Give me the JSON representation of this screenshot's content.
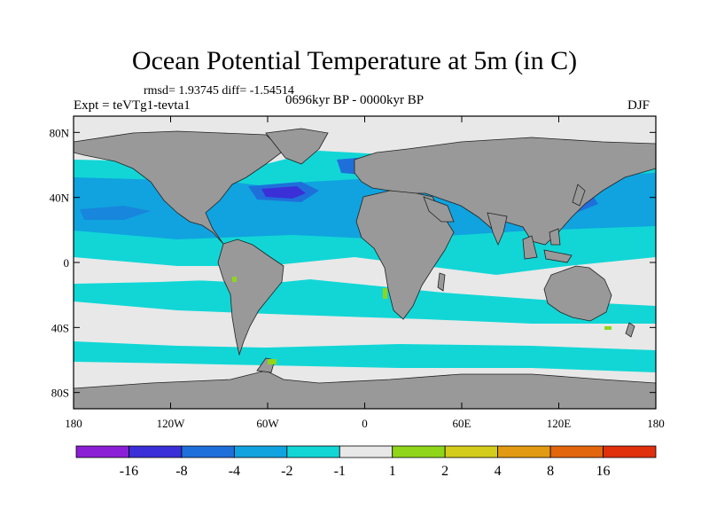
{
  "title": "Ocean Potential Temperature at 5m (in C)",
  "stats_line": "rmsd= 1.93745 diff= -1.54514",
  "expt_label": "Expt = teVTg1-tevta1",
  "period_label": "0696kyr BP - 0000kyr BP",
  "season_label": "DJF",
  "axes": {
    "lat_ticks": [
      {
        "label": "80N",
        "value": 80
      },
      {
        "label": "40N",
        "value": 40
      },
      {
        "label": "0",
        "value": 0
      },
      {
        "label": "40S",
        "value": -40
      },
      {
        "label": "80S",
        "value": -80
      }
    ],
    "lon_ticks": [
      {
        "label": "180",
        "value": -180
      },
      {
        "label": "120W",
        "value": -120
      },
      {
        "label": "60W",
        "value": -60
      },
      {
        "label": "0",
        "value": 0
      },
      {
        "label": "60E",
        "value": 60
      },
      {
        "label": "120E",
        "value": 120
      },
      {
        "label": "180",
        "value": 180
      }
    ],
    "lon_range": [
      -180,
      180
    ],
    "lat_range": [
      -90,
      90
    ]
  },
  "colorbar": {
    "labels": [
      "-16",
      "-8",
      "-4",
      "-2",
      "-1",
      "1",
      "2",
      "4",
      "8",
      "16"
    ],
    "colors": [
      "#8a1fd6",
      "#3b2fd8",
      "#1f6fdb",
      "#10a3df",
      "#12d6d6",
      "#e8e8e8",
      "#8fd61a",
      "#d4cc1a",
      "#e29a12",
      "#e2660c",
      "#e0300c"
    ]
  },
  "colors": {
    "land": "#999999",
    "no_change": "#e8e8e8",
    "cyan": "#12d6d6",
    "light_blue": "#10a3df",
    "mid_blue": "#1f6fdb",
    "dark_blue": "#3b2fd8",
    "yellow_green": "#8fd61a"
  }
}
